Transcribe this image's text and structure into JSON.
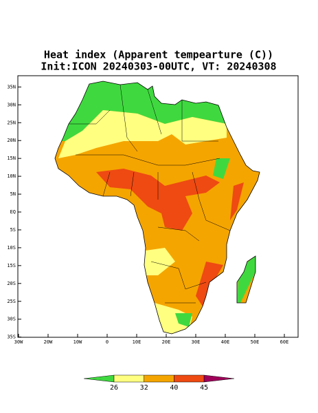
{
  "header": {
    "title": "Heat index (Apparent tempearture (C))",
    "subtitle": "Init:ICON 20240303-00UTC, VT: 20240308"
  },
  "map": {
    "lon_ticks": [
      {
        "value": -30,
        "label": "30W"
      },
      {
        "value": -20,
        "label": "20W"
      },
      {
        "value": -10,
        "label": "10W"
      },
      0,
      {
        "value": 10,
        "label": "10E"
      },
      {
        "value": 20,
        "label": "20E"
      },
      {
        "value": 30,
        "label": "30E"
      },
      {
        "value": 40,
        "label": "40E"
      },
      {
        "value": 50,
        "label": "50E"
      },
      {
        "value": 60,
        "label": "60E"
      }
    ],
    "lat_ticks": [
      {
        "value": 35,
        "label": "35N"
      },
      {
        "value": 30,
        "label": "30N"
      },
      {
        "value": 25,
        "label": "25N"
      },
      {
        "value": 20,
        "label": "20N"
      },
      {
        "value": 15,
        "label": "15N"
      },
      {
        "value": 10,
        "label": "10N"
      },
      {
        "value": 5,
        "label": "5N"
      },
      {
        "value": 0,
        "label": "EQ"
      },
      {
        "value": -5,
        "label": "5S"
      },
      {
        "value": -10,
        "label": "10S"
      },
      {
        "value": -15,
        "label": "15S"
      },
      {
        "value": -20,
        "label": "20S"
      },
      {
        "value": -25,
        "label": "25S"
      },
      {
        "value": -30,
        "label": "30S"
      },
      {
        "value": -35,
        "label": "35S"
      }
    ]
  },
  "colorbar": {
    "levels": [
      26,
      32,
      40,
      45
    ],
    "colors": [
      "#3fd93f",
      "#ffff80",
      "#f5a500",
      "#ee4a12",
      "#a0005a"
    ]
  }
}
